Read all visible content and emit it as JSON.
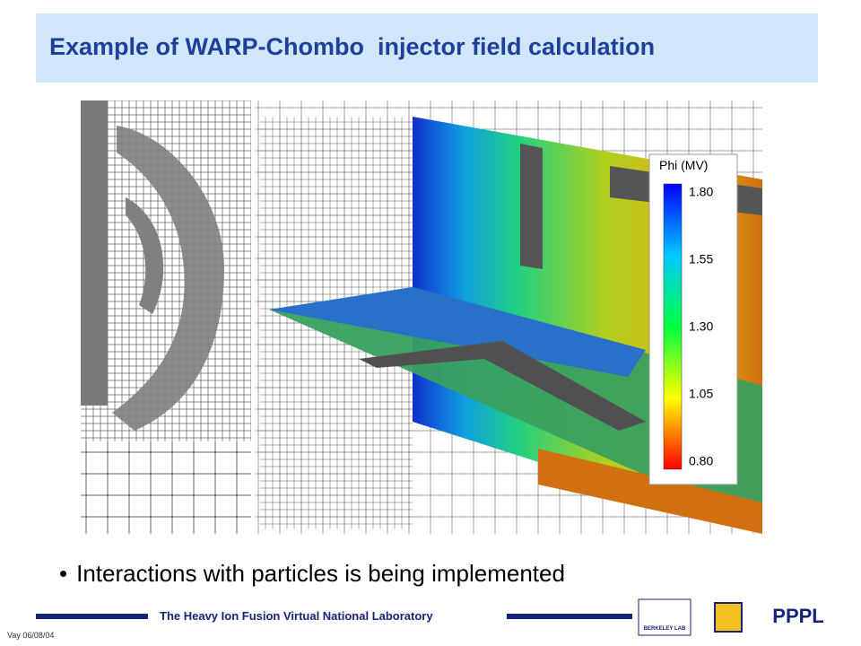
{
  "title": "Example of WARP-Chombo  injector field calculation",
  "figure": {
    "colorbar": {
      "title": "Phi (MV)",
      "ticks": [
        "1.80",
        "1.55",
        "1.30",
        "1.05",
        "0.80"
      ]
    }
  },
  "bullets": [
    "Interactions with particles is being implemented"
  ],
  "footer": {
    "lab": "The Heavy Ion Fusion Virtual National Laboratory",
    "date": "Vay 06/08/04",
    "logos": [
      "BERKELEY LAB",
      "PPPL"
    ]
  }
}
